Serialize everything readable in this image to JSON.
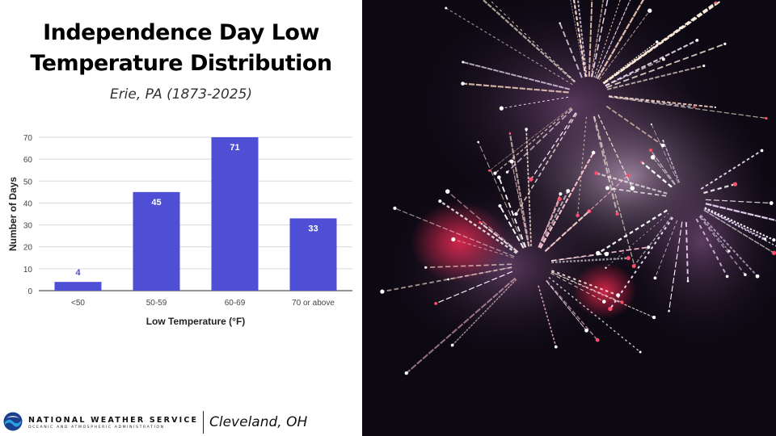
{
  "header": {
    "title_line1": "Independence Day Low",
    "title_line2": "Temperature Distribution",
    "subtitle": "Erie, PA (1873-2025)"
  },
  "chart_data": {
    "type": "bar",
    "categories": [
      "<50",
      "50-59",
      "60-69",
      "70 or above"
    ],
    "values": [
      4,
      45,
      71,
      33
    ],
    "xlabel": "Low Temperature (°F)",
    "ylabel": "Number of Days",
    "ylim": [
      0,
      70
    ],
    "yticks": [
      0,
      10,
      20,
      30,
      40,
      50,
      60,
      70
    ],
    "grid": true,
    "bar_color": "#4f4fd6",
    "label_color_inside": "#ffffff",
    "label_color_outside": "#4f4fd6"
  },
  "footer": {
    "org_name": "NATIONAL WEATHER SERVICE",
    "org_subtitle": "OCEANIC AND ATMOSPHERIC ADMINISTRATION",
    "office": "Cleveland, OH",
    "logo_icon": "noaa-logo-icon"
  },
  "photo": {
    "icon": "fireworks-photo"
  }
}
